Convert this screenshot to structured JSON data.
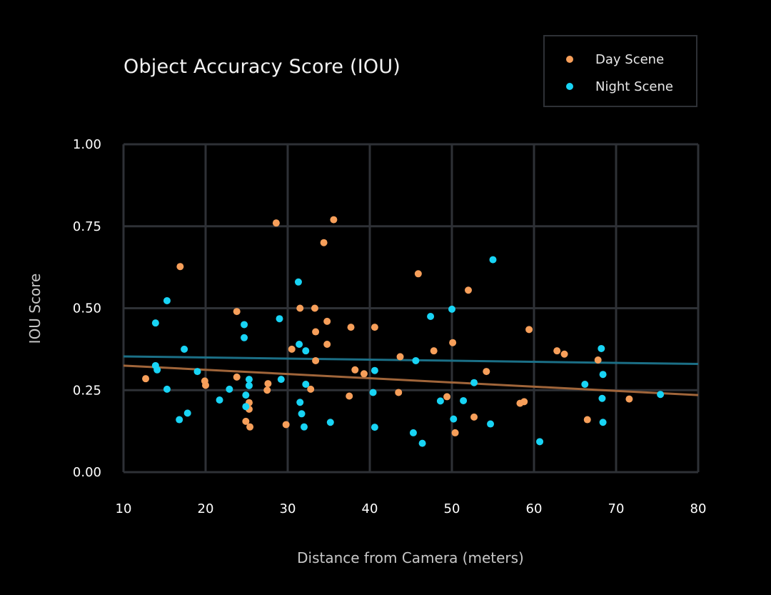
{
  "chart_data": {
    "type": "scatter",
    "title": "Object Accuracy Score (IOU)",
    "xlabel": "Distance from Camera (meters)",
    "ylabel": "IOU Score",
    "xlim": [
      10,
      80
    ],
    "ylim": [
      0,
      1
    ],
    "x_ticks": [
      "10",
      "20",
      "30",
      "40",
      "50",
      "60",
      "70",
      "80"
    ],
    "y_ticks": [
      "0.00",
      "0.25",
      "0.50",
      "0.75",
      "1.00"
    ],
    "x_tick_values": [
      10,
      20,
      30,
      40,
      50,
      60,
      70,
      80
    ],
    "y_tick_values": [
      0,
      0.25,
      0.5,
      0.75,
      1.0
    ],
    "grid": true,
    "legend_position": "top-right",
    "series": [
      {
        "name": "Day Scene",
        "color": "#f79f5a",
        "trend_color": "#a0653a",
        "trend": [
          [
            10,
            0.325
          ],
          [
            80,
            0.235
          ]
        ],
        "points": [
          [
            12.7,
            0.285
          ],
          [
            16.9,
            0.627
          ],
          [
            19.9,
            0.278
          ],
          [
            20.0,
            0.265
          ],
          [
            23.8,
            0.29
          ],
          [
            23.8,
            0.49
          ],
          [
            24.9,
            0.155
          ],
          [
            25.3,
            0.192
          ],
          [
            25.3,
            0.212
          ],
          [
            25.4,
            0.138
          ],
          [
            27.5,
            0.25
          ],
          [
            27.6,
            0.27
          ],
          [
            28.6,
            0.76
          ],
          [
            29.8,
            0.145
          ],
          [
            30.5,
            0.375
          ],
          [
            31.5,
            0.5
          ],
          [
            32.8,
            0.253
          ],
          [
            33.3,
            0.5
          ],
          [
            33.4,
            0.428
          ],
          [
            33.4,
            0.34
          ],
          [
            34.4,
            0.7
          ],
          [
            34.8,
            0.46
          ],
          [
            34.8,
            0.39
          ],
          [
            35.6,
            0.77
          ],
          [
            37.5,
            0.232
          ],
          [
            37.7,
            0.442
          ],
          [
            38.2,
            0.312
          ],
          [
            39.3,
            0.3
          ],
          [
            40.6,
            0.442
          ],
          [
            43.5,
            0.243
          ],
          [
            43.7,
            0.352
          ],
          [
            45.9,
            0.605
          ],
          [
            47.8,
            0.37
          ],
          [
            49.4,
            0.23
          ],
          [
            50.1,
            0.395
          ],
          [
            50.4,
            0.12
          ],
          [
            52.0,
            0.555
          ],
          [
            52.7,
            0.168
          ],
          [
            54.2,
            0.307
          ],
          [
            58.3,
            0.21
          ],
          [
            58.8,
            0.215
          ],
          [
            59.4,
            0.435
          ],
          [
            62.8,
            0.37
          ],
          [
            63.7,
            0.36
          ],
          [
            66.5,
            0.16
          ],
          [
            67.8,
            0.342
          ],
          [
            71.6,
            0.223
          ]
        ]
      },
      {
        "name": "Night Scene",
        "color": "#18d4f5",
        "trend_color": "#1b6f86",
        "trend": [
          [
            10,
            0.353
          ],
          [
            80,
            0.33
          ]
        ],
        "points": [
          [
            13.9,
            0.455
          ],
          [
            13.9,
            0.325
          ],
          [
            14.1,
            0.312
          ],
          [
            15.3,
            0.523
          ],
          [
            15.3,
            0.253
          ],
          [
            16.8,
            0.16
          ],
          [
            17.4,
            0.375
          ],
          [
            17.8,
            0.18
          ],
          [
            19.0,
            0.307
          ],
          [
            21.7,
            0.22
          ],
          [
            22.9,
            0.253
          ],
          [
            24.7,
            0.45
          ],
          [
            24.7,
            0.41
          ],
          [
            24.9,
            0.235
          ],
          [
            24.9,
            0.2
          ],
          [
            25.3,
            0.283
          ],
          [
            25.3,
            0.264
          ],
          [
            29.0,
            0.468
          ],
          [
            29.2,
            0.283
          ],
          [
            31.3,
            0.58
          ],
          [
            31.4,
            0.39
          ],
          [
            31.5,
            0.213
          ],
          [
            31.7,
            0.178
          ],
          [
            32.0,
            0.138
          ],
          [
            32.2,
            0.37
          ],
          [
            32.2,
            0.268
          ],
          [
            35.2,
            0.152
          ],
          [
            40.4,
            0.243
          ],
          [
            40.6,
            0.31
          ],
          [
            40.6,
            0.137
          ],
          [
            45.3,
            0.12
          ],
          [
            45.6,
            0.34
          ],
          [
            46.4,
            0.088
          ],
          [
            47.4,
            0.475
          ],
          [
            48.6,
            0.217
          ],
          [
            50.0,
            0.497
          ],
          [
            50.2,
            0.162
          ],
          [
            51.4,
            0.218
          ],
          [
            52.7,
            0.273
          ],
          [
            54.7,
            0.147
          ],
          [
            55.0,
            0.648
          ],
          [
            60.7,
            0.093
          ],
          [
            66.2,
            0.268
          ],
          [
            68.2,
            0.377
          ],
          [
            68.3,
            0.225
          ],
          [
            68.4,
            0.298
          ],
          [
            68.4,
            0.152
          ],
          [
            75.4,
            0.237
          ]
        ]
      }
    ]
  }
}
